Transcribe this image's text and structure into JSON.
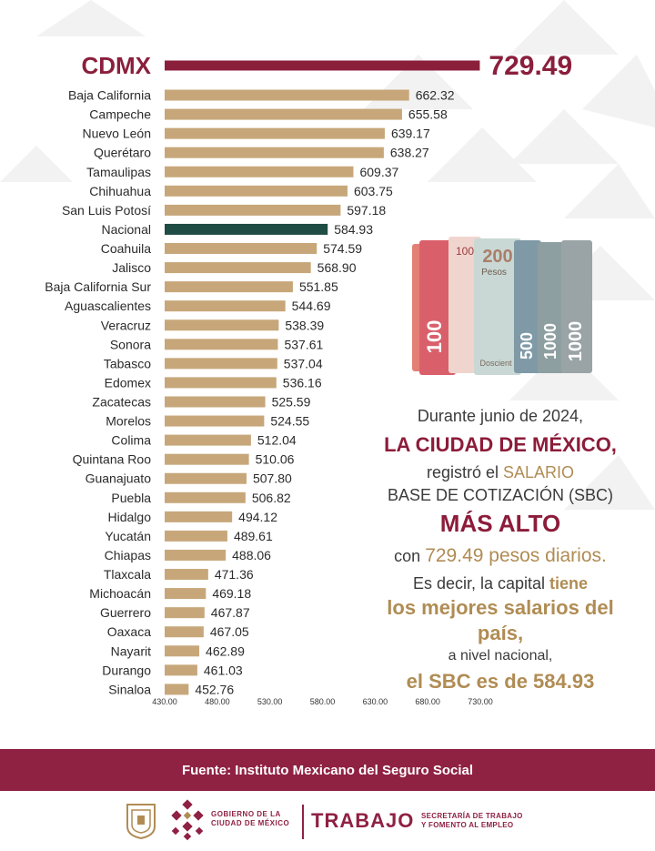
{
  "chart_data": {
    "type": "bar",
    "orientation": "horizontal",
    "categories": [
      "CDMX",
      "Baja California",
      "Campeche",
      "Nuevo León",
      "Querétaro",
      "Tamaulipas",
      "Chihuahua",
      "San Luis Potosí",
      "Nacional",
      "Coahuila",
      "Jalisco",
      "Baja California Sur",
      "Aguascalientes",
      "Veracruz",
      "Sonora",
      "Tabasco",
      "Edomex",
      "Zacatecas",
      "Morelos",
      "Colima",
      "Quintana Roo",
      "Guanajuato",
      "Puebla",
      "Hidalgo",
      "Yucatán",
      "Chiapas",
      "Tlaxcala",
      "Michoacán",
      "Guerrero",
      "Oaxaca",
      "Nayarit",
      "Durango",
      "Sinaloa"
    ],
    "values": [
      729.49,
      662.32,
      655.58,
      639.17,
      638.27,
      609.37,
      603.75,
      597.18,
      584.93,
      574.59,
      568.9,
      551.85,
      544.69,
      538.39,
      537.61,
      537.04,
      536.16,
      525.59,
      524.55,
      512.04,
      510.06,
      507.8,
      506.82,
      494.12,
      489.61,
      488.06,
      471.36,
      469.18,
      467.87,
      467.05,
      462.89,
      461.03,
      452.76
    ],
    "value_labels": [
      "729.49",
      "662.32",
      "655.58",
      "639.17",
      "638.27",
      "609.37",
      "603.75",
      "597.18",
      "584.93",
      "574.59",
      "568.90",
      "551.85",
      "544.69",
      "538.39",
      "537.61",
      "537.04",
      "536.16",
      "525.59",
      "524.55",
      "512.04",
      "510.06",
      "507.80",
      "506.82",
      "494.12",
      "489.61",
      "488.06",
      "471.36",
      "469.18",
      "467.87",
      "467.05",
      "462.89",
      "461.03",
      "452.76"
    ],
    "xlim": [
      430,
      730
    ],
    "x_ticks": [
      "430.00",
      "480.00",
      "530.00",
      "580.00",
      "630.00",
      "680.00",
      "730.00"
    ],
    "title": "",
    "xlabel": "",
    "ylabel": "",
    "grid": false,
    "legend": "none",
    "colors": {
      "default": "#c7a77a",
      "highlight": "#8a1f3c",
      "nacional": "#1f4c44"
    },
    "highlight_category": "CDMX",
    "nacional_category": "Nacional"
  },
  "text_block": {
    "line1": "Durante junio de 2024,",
    "line2": "LA CIUDAD DE MÉXICO,",
    "line3_pre": "registró el",
    "line3_gold": "SALARIO",
    "line4": "BASE DE COTIZACIÓN (SBC)",
    "line5": "MÁS ALTO",
    "line6_pre": "con",
    "line6_gold": "729.49 pesos diarios.",
    "line7_pre": "Es decir, la capital",
    "line7_gold": "tiene",
    "line8": "los mejores salarios del país,",
    "line9": "a nivel nacional,",
    "line10": "el SBC es de 584.93"
  },
  "banknotes": {
    "note1": "100",
    "note2": "200",
    "note2_word": "Pesos",
    "note3": "500",
    "note4": "1000",
    "note5": "1000",
    "word_docscient": "Doscient"
  },
  "source": "Fuente: Instituto Mexicano del Seguro Social",
  "footer": {
    "gov_line1": "GOBIERNO DE LA",
    "gov_line2": "CIUDAD DE MÉXICO",
    "trabajo": "TRABAJO",
    "sec_line1": "SECRETARÍA DE TRABAJO",
    "sec_line2": "Y FOMENTO AL EMPLEO"
  },
  "colors": {
    "brand": "#8f2143",
    "gold": "#b08c54",
    "bar": "#c7a77a"
  }
}
